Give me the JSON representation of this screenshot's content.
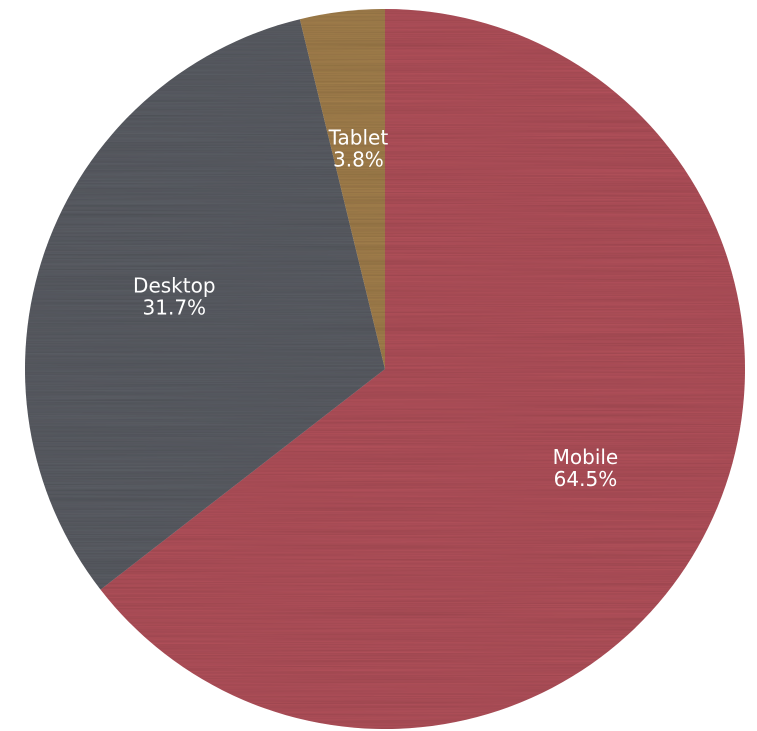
{
  "chart_data": {
    "type": "pie",
    "title": "",
    "categories": [
      "Mobile",
      "Desktop",
      "Tablet"
    ],
    "values": [
      64.5,
      31.7,
      3.8
    ],
    "value_labels": [
      "64.5%",
      "31.7%",
      "3.8%"
    ],
    "colors": [
      "#b5525c",
      "#5c5f66",
      "#a5814d"
    ],
    "start_angle_deg": 0,
    "direction": "clockwise",
    "legend": "none"
  }
}
